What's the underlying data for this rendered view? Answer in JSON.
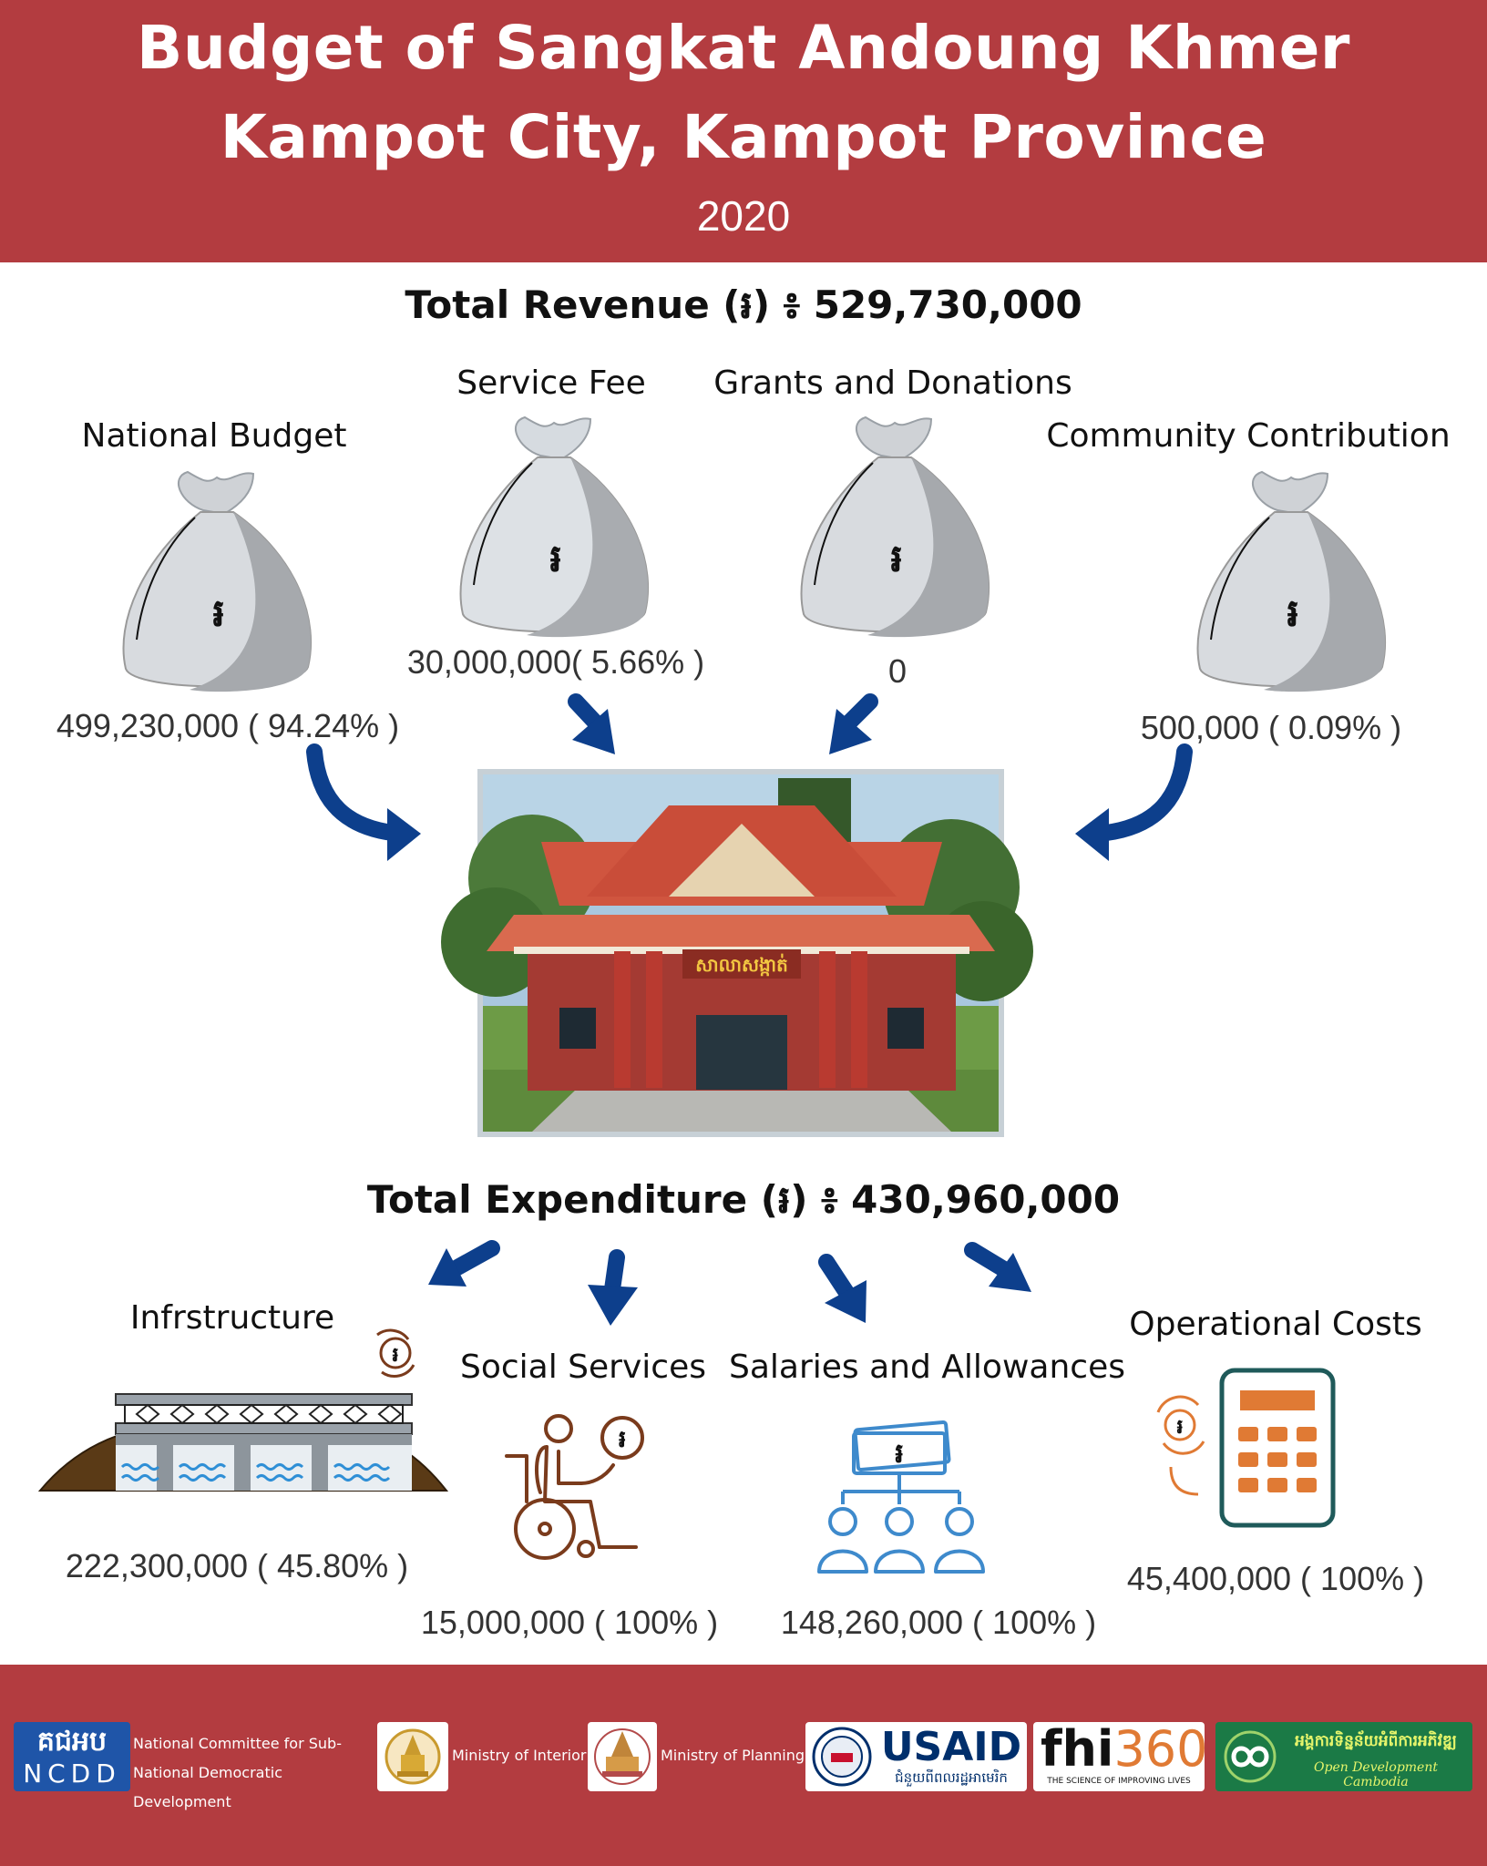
{
  "header": {
    "title_line1": "Budget of Sangkat Andoung Khmer",
    "title_line2": "Kampot City, Kampot Province",
    "year": "2020"
  },
  "revenue": {
    "total_label": "Total Revenue (៛) ៖ 529,730,000",
    "sources": [
      {
        "label": "National Budget",
        "amount": "499,230,000 ( 94.24% )"
      },
      {
        "label": "Service Fee",
        "amount": "30,000,000( 5.66% )"
      },
      {
        "label": "Grants and Donations",
        "amount": "0"
      },
      {
        "label": "Community Contribution",
        "amount": "500,000 ( 0.09% )"
      }
    ]
  },
  "building": {
    "sign": "សាលាសង្កាត់"
  },
  "expenditure": {
    "total_label": "Total Expenditure (៛) ៖ 430,960,000",
    "items": [
      {
        "label": "Infrstructure",
        "amount": "222,300,000 ( 45.80% )"
      },
      {
        "label": "Social Services",
        "amount": "15,000,000 ( 100% )"
      },
      {
        "label": "Salaries and Allowances",
        "amount": "148,260,000 ( 100% )"
      },
      {
        "label": "Operational Costs",
        "amount": "45,400,000 ( 100% )"
      }
    ]
  },
  "currency_symbol": "៛",
  "icons": [
    "money-bag-icon",
    "arrow-icon",
    "bridge-icon",
    "wheelchair-icon",
    "org-chart-icon",
    "calculator-icon"
  ],
  "colors": {
    "header_bg": "#b33c40",
    "arrow": "#0d3f8c",
    "bag": "#cfd2d6",
    "brown": "#7a3b1c",
    "blue_icon": "#3e8acc",
    "orange": "#e07a34"
  },
  "footer": {
    "logos": [
      {
        "name": "ncdd",
        "mark": "គជអប",
        "sub": "NCDD",
        "caption": "National Committee for Sub-National Democratic Development"
      },
      {
        "name": "moi",
        "caption": "Ministry of Interior"
      },
      {
        "name": "mop",
        "caption": "Ministry of Planning"
      },
      {
        "name": "usaid",
        "mark": "USAID",
        "sub": "ជំនួយពីពលរដ្ឋអាមេរិក"
      },
      {
        "name": "fhi360",
        "mark_a": "fhi",
        "mark_b": "360",
        "sub": "THE SCIENCE OF IMPROVING LIVES"
      },
      {
        "name": "odc",
        "mark": "អង្គការទិន្នន័យអំពីការអភិវឌ្ឍ",
        "sub": "Open Development Cambodia"
      }
    ]
  }
}
